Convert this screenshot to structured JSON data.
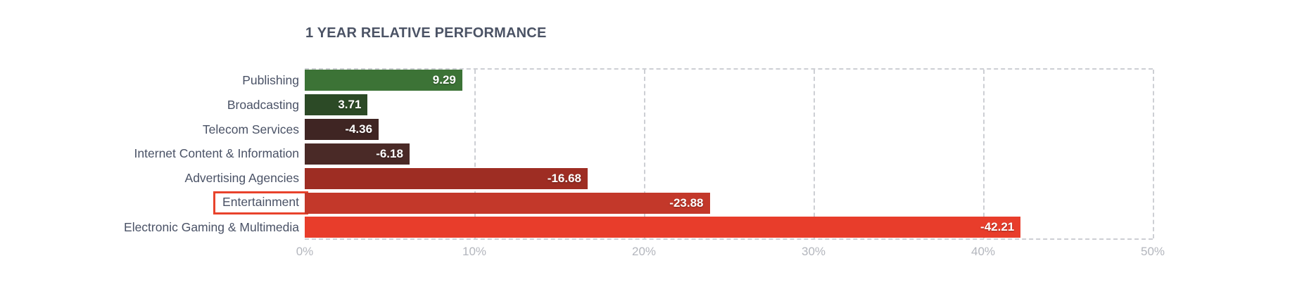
{
  "chart_data": {
    "type": "bar",
    "orientation": "horizontal",
    "title": "1 YEAR RELATIVE PERFORMANCE",
    "categories": [
      "Publishing",
      "Broadcasting",
      "Telecom Services",
      "Internet Content & Information",
      "Advertising Agencies",
      "Entertainment",
      "Electronic Gaming & Multimedia"
    ],
    "values": [
      9.29,
      3.71,
      -4.36,
      -6.18,
      -16.68,
      -23.88,
      -42.21
    ],
    "value_labels": [
      "9.29",
      "3.71",
      "-4.36",
      "-6.18",
      "-16.68",
      "-23.88",
      "-42.21"
    ],
    "bar_colors": [
      "#3c7336",
      "#2c4a26",
      "#3f2523",
      "#4a2a27",
      "#9e2d23",
      "#c3382a",
      "#e83d2b"
    ],
    "bar_length_scale": "absolute_value_percent",
    "highlighted_category": "Entertainment",
    "highlight_box_color": "#e8432c",
    "xlabel": "",
    "ylabel": "",
    "axis": {
      "min": 0,
      "max": 50,
      "tick_values": [
        0,
        10,
        20,
        30,
        40,
        50
      ],
      "tick_labels": [
        "0%",
        "10%",
        "20%",
        "30%",
        "40%",
        "50%"
      ]
    },
    "grid": "dashed-vertical",
    "legend": "none",
    "styles": {
      "title_color": "#4b5365",
      "category_label_color": "#4a5266",
      "tick_label_color": "#b3b6bd",
      "grid_color": "#cdcfd4",
      "value_label_color": "#ffffff",
      "background": "#ffffff"
    }
  }
}
